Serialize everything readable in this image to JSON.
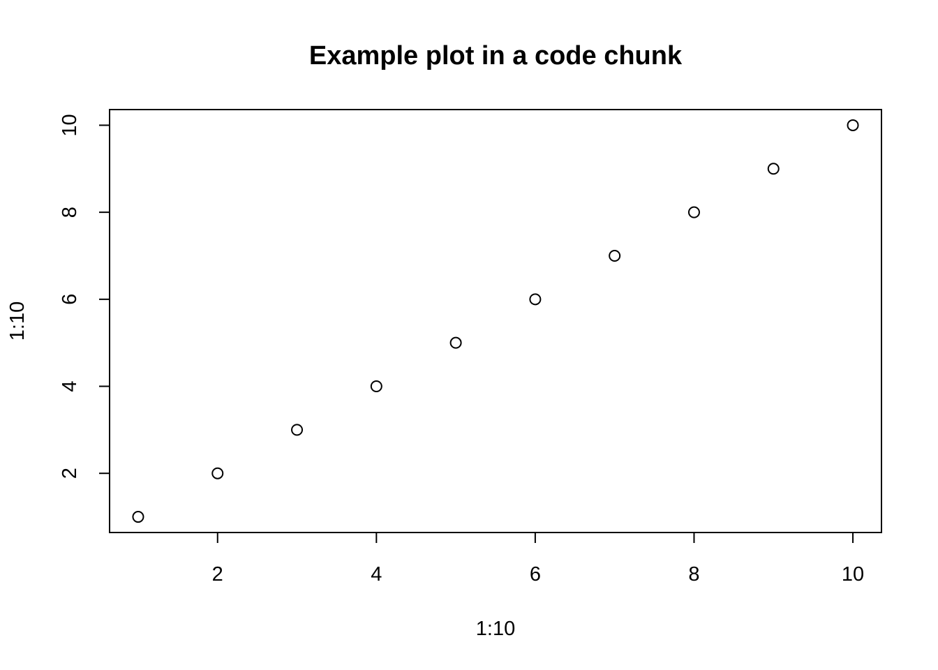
{
  "chart_data": {
    "type": "scatter",
    "title": "Example plot in a code chunk",
    "xlabel": "1:10",
    "ylabel": "1:10",
    "x": [
      1,
      2,
      3,
      4,
      5,
      6,
      7,
      8,
      9,
      10
    ],
    "y": [
      1,
      2,
      3,
      4,
      5,
      6,
      7,
      8,
      9,
      10
    ],
    "xlim": [
      0.64,
      10.36
    ],
    "ylim": [
      0.64,
      10.36
    ],
    "xticks": [
      2,
      4,
      6,
      8,
      10
    ],
    "yticks": [
      2,
      4,
      6,
      8,
      10
    ],
    "xtick_labels": [
      "2",
      "4",
      "6",
      "8",
      "10"
    ],
    "ytick_labels": [
      "2",
      "4",
      "6",
      "8",
      "10"
    ],
    "marker": "open-circle",
    "grid": false,
    "legend": "none",
    "colors": {
      "points": "#000000",
      "axes": "#000000",
      "background": "#ffffff"
    }
  }
}
